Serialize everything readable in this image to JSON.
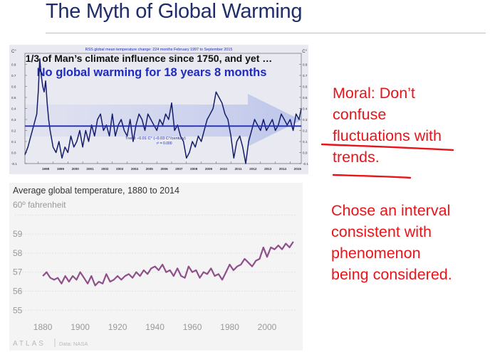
{
  "slide": {
    "title": "The Myth of Global Warming"
  },
  "notes": {
    "moral_lines": [
      "Moral: Don’t",
      "confuse",
      "fluctuations with",
      "trends."
    ],
    "interval_lines": [
      "Chose an interval",
      "consistent with",
      "phenomenon",
      "being considered."
    ]
  },
  "colors": {
    "ink_red": "#e8141a",
    "rss_line": "#141d6b",
    "rss_trend": "#1f2bbf",
    "atlas_line": "#8e4f8a",
    "title_blue": "#1f2d6b"
  },
  "chart_data": [
    {
      "type": "line",
      "title": "RSS global mean temperature change: 224 months February 1997 to September 2015",
      "headline_1": "1/3 of Man’s climate influence since 1750, and yet …",
      "headline_2": "No global warming for 18 years 8 months",
      "trend_label": "Trend –0.01 C° (–0.03 C°/century)",
      "r2_label": "r² = 0.000",
      "unit_left": "C°",
      "unit_right": "C°",
      "xlim": [
        1997.1,
        2015.75
      ],
      "ylim": [
        -0.1,
        0.9
      ],
      "x_ticks": [
        "1998",
        "1999",
        "2000",
        "2001",
        "2002",
        "2003",
        "2004",
        "2005",
        "2006",
        "2007",
        "2008",
        "2009",
        "2010",
        "2011",
        "2012",
        "2013",
        "2014",
        "2015"
      ],
      "y_ticks": [
        "-0.1",
        "0.0",
        "0.1",
        "0.2",
        "0.3",
        "0.4",
        "0.5",
        "0.6",
        "0.7",
        "0.8"
      ],
      "trend_value": 0.24,
      "series": [
        {
          "x": [
            1997.1,
            1997.3,
            1997.5,
            1997.7,
            1997.9,
            1998.0,
            1998.1,
            1998.2,
            1998.3,
            1998.4,
            1998.5,
            1998.6,
            1998.7,
            1998.8,
            1999.0,
            1999.2,
            1999.4,
            1999.6,
            1999.8,
            2000.0,
            2000.2,
            2000.4,
            2000.6,
            2000.8,
            2001.0,
            2001.2,
            2001.4,
            2001.6,
            2001.8,
            2002.0,
            2002.2,
            2002.4,
            2002.6,
            2002.8,
            2003.0,
            2003.2,
            2003.4,
            2003.6,
            2003.8,
            2004.0,
            2004.2,
            2004.4,
            2004.6,
            2004.8,
            2005.0,
            2005.2,
            2005.4,
            2005.6,
            2005.8,
            2006.0,
            2006.2,
            2006.4,
            2006.6,
            2006.8,
            2007.0,
            2007.2,
            2007.4,
            2007.6,
            2007.8,
            2008.0,
            2008.2,
            2008.4,
            2008.6,
            2008.8,
            2009.0,
            2009.2,
            2009.4,
            2009.6,
            2009.8,
            2010.0,
            2010.2,
            2010.4,
            2010.6,
            2010.8,
            2011.0,
            2011.2,
            2011.4,
            2011.6,
            2011.8,
            2012.0,
            2012.2,
            2012.4,
            2012.6,
            2012.8,
            2013.0,
            2013.2,
            2013.4,
            2013.6,
            2013.8,
            2014.0,
            2014.2,
            2014.4,
            2014.6,
            2014.8,
            2015.0,
            2015.2,
            2015.4,
            2015.6,
            2015.75
          ],
          "y": [
            -0.02,
            0.05,
            0.15,
            0.25,
            0.35,
            0.55,
            0.85,
            0.7,
            0.6,
            0.55,
            0.65,
            0.45,
            0.3,
            0.2,
            0.05,
            0.0,
            0.1,
            -0.05,
            0.05,
            0.0,
            0.15,
            0.05,
            0.1,
            0.2,
            0.05,
            0.2,
            0.1,
            0.25,
            0.15,
            0.3,
            0.35,
            0.2,
            0.25,
            0.15,
            0.35,
            0.15,
            0.25,
            0.3,
            0.2,
            0.15,
            0.3,
            0.1,
            0.25,
            0.35,
            0.3,
            0.2,
            0.35,
            0.3,
            0.25,
            0.2,
            0.3,
            0.25,
            0.35,
            0.3,
            0.45,
            0.2,
            0.25,
            0.15,
            0.1,
            -0.05,
            0.0,
            0.1,
            0.05,
            0.15,
            0.1,
            0.2,
            0.3,
            0.35,
            0.4,
            0.55,
            0.5,
            0.45,
            0.35,
            0.3,
            0.15,
            -0.05,
            0.1,
            0.15,
            0.05,
            -0.1,
            0.1,
            0.2,
            0.3,
            0.25,
            0.2,
            0.3,
            0.2,
            0.25,
            0.3,
            0.2,
            0.25,
            0.35,
            0.3,
            0.25,
            0.3,
            0.2,
            0.35,
            0.3,
            0.4
          ]
        }
      ]
    },
    {
      "type": "line",
      "title": "Average global temperature, 1880 to 2014",
      "ylabel": "60º fahrenheit",
      "source": "Data: NASA",
      "brand": "ATLAS",
      "xlim": [
        1875,
        2016
      ],
      "ylim": [
        54.6,
        60.2
      ],
      "x_ticks": [
        1880,
        1900,
        1920,
        1940,
        1960,
        1980,
        2000
      ],
      "y_ticks": [
        55,
        56,
        57,
        58,
        59
      ],
      "series": [
        {
          "x": [
            1880,
            1882,
            1884,
            1886,
            1888,
            1890,
            1892,
            1894,
            1896,
            1898,
            1900,
            1902,
            1904,
            1906,
            1908,
            1910,
            1912,
            1914,
            1916,
            1918,
            1920,
            1922,
            1924,
            1926,
            1928,
            1930,
            1932,
            1934,
            1936,
            1938,
            1940,
            1942,
            1944,
            1946,
            1948,
            1950,
            1952,
            1954,
            1956,
            1958,
            1960,
            1962,
            1964,
            1966,
            1968,
            1970,
            1972,
            1974,
            1976,
            1978,
            1980,
            1982,
            1984,
            1986,
            1988,
            1990,
            1992,
            1994,
            1996,
            1998,
            2000,
            2002,
            2004,
            2006,
            2008,
            2010,
            2012,
            2014
          ],
          "y": [
            56.8,
            57.0,
            56.7,
            56.6,
            56.7,
            56.4,
            56.8,
            56.5,
            56.8,
            56.6,
            57.0,
            56.7,
            56.4,
            56.8,
            56.3,
            56.5,
            56.4,
            56.9,
            56.5,
            56.6,
            56.8,
            56.6,
            56.8,
            56.9,
            56.7,
            57.0,
            56.8,
            57.1,
            56.9,
            57.2,
            57.3,
            57.1,
            57.4,
            57.0,
            57.1,
            56.8,
            57.2,
            56.8,
            56.7,
            57.3,
            57.0,
            57.1,
            56.7,
            57.0,
            56.9,
            57.2,
            56.8,
            56.9,
            56.6,
            57.0,
            57.4,
            57.1,
            57.3,
            57.4,
            57.7,
            57.5,
            57.3,
            57.6,
            57.7,
            58.3,
            57.8,
            58.3,
            58.2,
            58.4,
            58.2,
            58.5,
            58.3,
            58.6
          ]
        }
      ]
    }
  ]
}
